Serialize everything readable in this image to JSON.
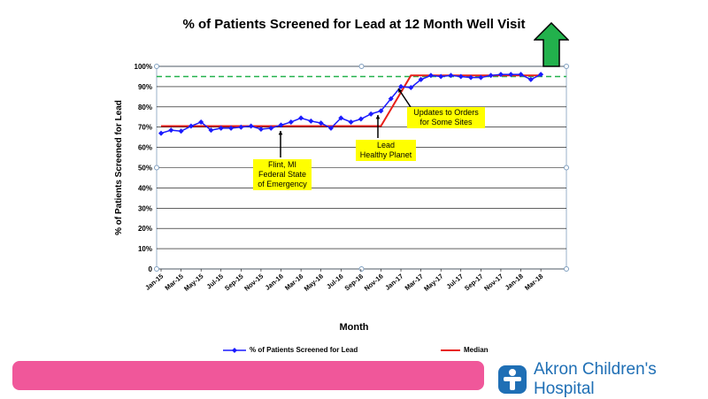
{
  "chart_data": {
    "type": "line",
    "title": "% of Patients Screened for Lead at 12 Month Well Visit",
    "xlabel": "Month",
    "ylabel": "% of Patients Screened for Lead",
    "ylim": [
      0,
      100
    ],
    "y_ticks": [
      "0",
      "10%",
      "20%",
      "30%",
      "40%",
      "50%",
      "60%",
      "70%",
      "80%",
      "90%",
      "100%"
    ],
    "x_tick_labels": [
      "Jan-15",
      "Mar-15",
      "May-15",
      "Jul-15",
      "Sep-15",
      "Nov-15",
      "Jan-16",
      "Mar-16",
      "May-16",
      "Jul-16",
      "Sep-16",
      "Nov-16",
      "Jan-17",
      "Mar-17",
      "May-17",
      "Jul-17",
      "Sep-17",
      "Nov-17",
      "Jan-18",
      "Mar-18"
    ],
    "series": [
      {
        "name": "% of Patients Screened for Lead",
        "color": "#1a1aff",
        "values": [
          67,
          68.5,
          68,
          70.5,
          72.5,
          68.5,
          69.5,
          69.5,
          70,
          70.5,
          69,
          69.5,
          71,
          72.5,
          74.5,
          73,
          72,
          69.5,
          74.5,
          72.5,
          74,
          76.5,
          78,
          84,
          90,
          89.5,
          93.5,
          95.5,
          95,
          95.5,
          95,
          94.5,
          94.5,
          95.5,
          96,
          96,
          96,
          93.5,
          96
        ]
      },
      {
        "name": "Median",
        "color": "#e8201a",
        "segments": [
          {
            "from_index": 0,
            "to_index": 22,
            "value": 70.5
          },
          {
            "from_index": 25,
            "to_index": 38,
            "value": 95.5
          }
        ]
      }
    ],
    "goal_line": {
      "value": 95,
      "color": "#22b14c",
      "style": "dashed"
    },
    "annotations": [
      {
        "text": "Flint, MI\nFederal State\nof Emergency"
      },
      {
        "text": "Lead\nHealthy Planet"
      },
      {
        "text": "Updates to Orders\nfor Some Sites"
      }
    ]
  },
  "legend": {
    "series_label": "% of Patients Screened for Lead",
    "median_label": "Median"
  },
  "logo": {
    "text": "Akron Children's Hospital"
  },
  "colors": {
    "pink_bar": "#f0579a",
    "brand_blue": "#1f6fb5",
    "goal_arrow": "#22b14c"
  }
}
